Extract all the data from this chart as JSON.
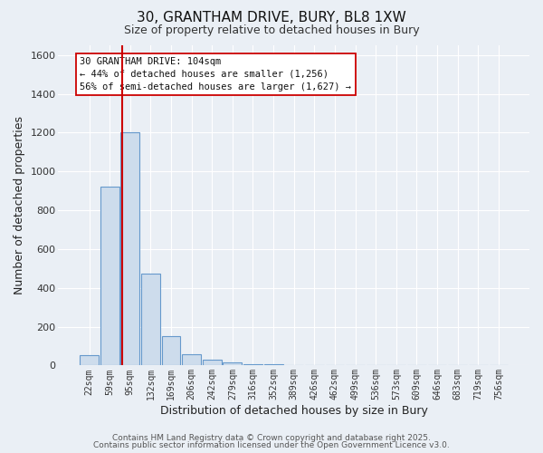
{
  "title_line1": "30, GRANTHAM DRIVE, BURY, BL8 1XW",
  "title_line2": "Size of property relative to detached houses in Bury",
  "bar_labels": [
    "22sqm",
    "59sqm",
    "95sqm",
    "132sqm",
    "169sqm",
    "206sqm",
    "242sqm",
    "279sqm",
    "316sqm",
    "352sqm",
    "389sqm",
    "426sqm",
    "462sqm",
    "499sqm",
    "536sqm",
    "573sqm",
    "609sqm",
    "646sqm",
    "683sqm",
    "719sqm",
    "756sqm"
  ],
  "bar_values": [
    55,
    920,
    1200,
    475,
    150,
    60,
    28,
    15,
    5,
    5,
    0,
    0,
    0,
    0,
    0,
    0,
    0,
    0,
    0,
    0,
    0
  ],
  "bar_color": "#cddcec",
  "bar_edge_color": "#6699cc",
  "background_color": "#eaeff5",
  "grid_color": "#ffffff",
  "xlabel": "Distribution of detached houses by size in Bury",
  "ylabel": "Number of detached properties",
  "ylim": [
    0,
    1650
  ],
  "yticks": [
    0,
    200,
    400,
    600,
    800,
    1000,
    1200,
    1400,
    1600
  ],
  "property_line_color": "#cc0000",
  "annotation_title": "30 GRANTHAM DRIVE: 104sqm",
  "annotation_line1": "← 44% of detached houses are smaller (1,256)",
  "annotation_line2": "56% of semi-detached houses are larger (1,627) →",
  "footer_line1": "Contains HM Land Registry data © Crown copyright and database right 2025.",
  "footer_line2": "Contains public sector information licensed under the Open Government Licence v3.0."
}
